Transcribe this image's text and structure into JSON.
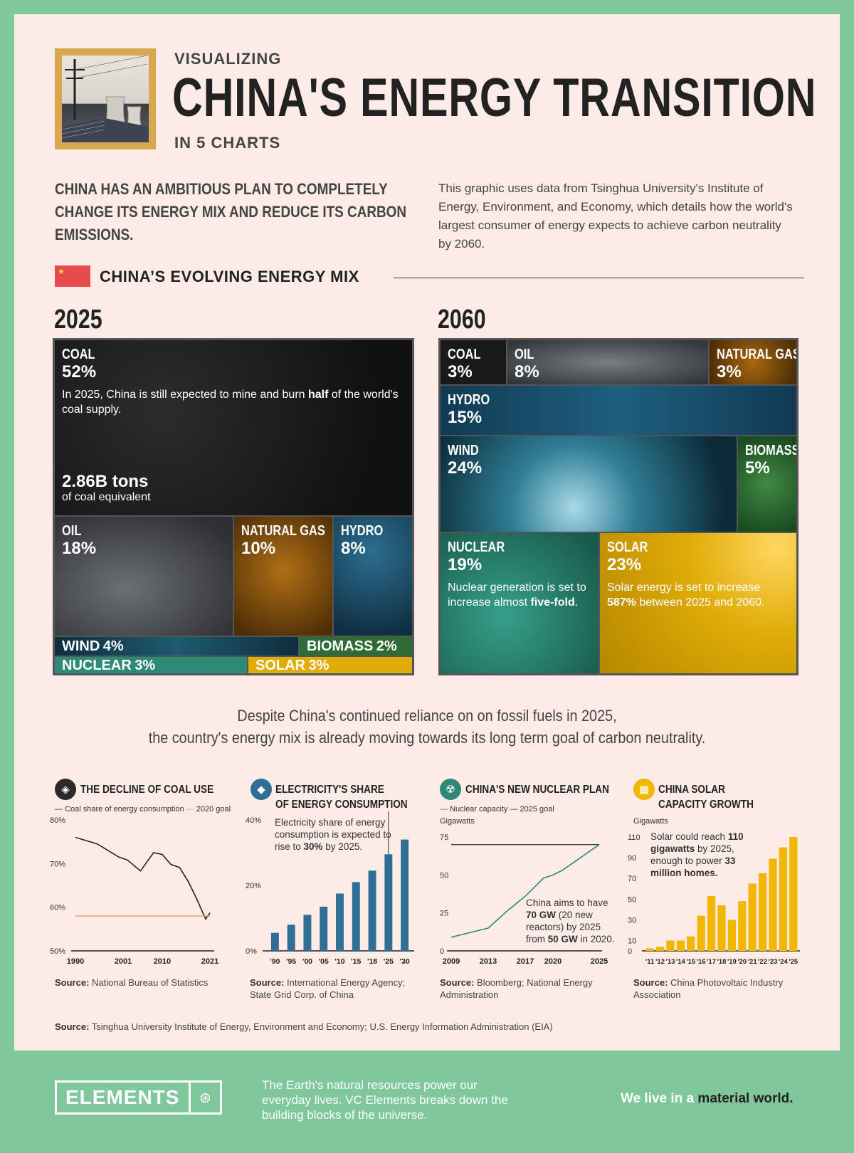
{
  "header": {
    "kicker": "VISUALIZING",
    "title": "CHINA'S ENERGY TRANSITION",
    "subkicker": "IN 5 CHARTS"
  },
  "intro": {
    "left": "CHINA HAS AN AMBITIOUS PLAN TO COMPLETELY CHANGE ITS ENERGY MIX AND REDUCE ITS CARBON EMISSIONS.",
    "right": "This graphic uses data from Tsinghua University's Institute of Energy, Environment, and Economy, which details how the world's largest consumer of energy expects to achieve carbon neutrality by 2060."
  },
  "mix": {
    "heading": "CHINA’S EVOLVING ENERGY MIX",
    "year_a": "2025",
    "year_b": "2060",
    "coal_desc_a": "In 2025, China is still expected to mine and burn ",
    "coal_desc_b": "half",
    "coal_desc_c": " of the world's coal supply.",
    "coal_stat": "2.86B tons",
    "coal_stat_sub": "of coal equivalent",
    "nuclear_desc_a": "Nuclear generation is set to increase almost ",
    "nuclear_desc_b": "five-fold",
    "solar_desc_a": "Solar energy is set to increase ",
    "solar_desc_b": "587%",
    "solar_desc_c": " between 2025 and 2060."
  },
  "mid_text": {
    "line1": "Despite China's continued reliance on on fossil fuels in 2025,",
    "line2": "the country's energy mix is already moving towards its long term goal of carbon neutrality."
  },
  "chart_data": [
    {
      "type": "table",
      "title": "2025",
      "series": [
        {
          "name": "COAL",
          "value": 52,
          "label": "52%"
        },
        {
          "name": "OIL",
          "value": 18,
          "label": "18%"
        },
        {
          "name": "NATURAL GAS",
          "value": 10,
          "label": "10%"
        },
        {
          "name": "HYDRO",
          "value": 8,
          "label": "8%"
        },
        {
          "name": "WIND",
          "value": 4,
          "label": "4%"
        },
        {
          "name": "BIOMASS",
          "value": 2,
          "label": "2%"
        },
        {
          "name": "NUCLEAR",
          "value": 3,
          "label": "3%"
        },
        {
          "name": "SOLAR",
          "value": 3,
          "label": "3%"
        }
      ]
    },
    {
      "type": "table",
      "title": "2060",
      "series": [
        {
          "name": "COAL",
          "value": 3,
          "label": "3%"
        },
        {
          "name": "OIL",
          "value": 8,
          "label": "8%"
        },
        {
          "name": "NATURAL GAS",
          "value": 3,
          "label": "3%"
        },
        {
          "name": "HYDRO",
          "value": 15,
          "label": "15%"
        },
        {
          "name": "WIND",
          "value": 24,
          "label": "24%"
        },
        {
          "name": "BIOMASS",
          "value": 5,
          "label": "5%"
        },
        {
          "name": "NUCLEAR",
          "value": 19,
          "label": "19%"
        },
        {
          "name": "SOLAR",
          "value": 23,
          "label": "23%"
        }
      ]
    },
    {
      "type": "line",
      "title": "THE DECLINE OF COAL USE",
      "legend": [
        "Coal share of energy consumption",
        "2020 goal"
      ],
      "x": [
        1990,
        1995,
        2000,
        2002,
        2005,
        2008,
        2010,
        2012,
        2014,
        2016,
        2018,
        2020,
        2021
      ],
      "series": [
        {
          "name": "Coal share of energy consumption",
          "values": [
            76,
            74.5,
            71.5,
            70.8,
            68.3,
            72.5,
            72.1,
            69.8,
            69.1,
            65.9,
            61.8,
            57.3,
            58.7
          ]
        },
        {
          "name": "2020 goal",
          "values": [
            58,
            58,
            58,
            58,
            58,
            58,
            58,
            58,
            58,
            58,
            58,
            58,
            58
          ]
        }
      ],
      "ylim": [
        50,
        80
      ],
      "yticks": [
        "80%",
        "70%",
        "60%",
        "50%"
      ],
      "xticks": [
        "1990",
        "2001",
        "2010",
        "2021"
      ],
      "source_label": "Source:",
      "source": "National Bureau of Statistics"
    },
    {
      "type": "bar",
      "title": "ELECTRICITY'S SHARE OF ENERGY CONSUMPTION",
      "title_l1": "ELECTRICITY'S SHARE",
      "title_l2": "OF ENERGY CONSUMPTION",
      "categories": [
        "'90",
        "'95",
        "'00",
        "'05",
        "'10",
        "'15",
        "'18",
        "'25",
        "'30"
      ],
      "values": [
        5.5,
        8,
        11,
        13.5,
        17.5,
        21,
        24.5,
        29.5,
        34
      ],
      "ylim": [
        0,
        40
      ],
      "yticks": [
        "40%",
        "20%",
        "0%"
      ],
      "annotation_a": "Electricity share of energy consumption is expected to rise to ",
      "annotation_b": "30%",
      "annotation_c": " by 2025.",
      "source_label": "Source:",
      "source": "International Energy Agency; State Grid Corp. of China"
    },
    {
      "type": "line",
      "title": "CHINA'S NEW NUCLEAR PLAN",
      "legend": [
        "Nuclear capacity",
        "2025 goal"
      ],
      "ylabel": "Gigawatts",
      "x": [
        2009,
        2013,
        2015,
        2017,
        2019,
        2020,
        2021,
        2025
      ],
      "series": [
        {
          "name": "Nuclear capacity",
          "values": [
            9,
            15,
            26,
            36,
            48,
            50,
            53,
            70
          ]
        },
        {
          "name": "2025 goal",
          "values": [
            70,
            70,
            70,
            70,
            70,
            70,
            70,
            70
          ]
        }
      ],
      "ylim": [
        0,
        75
      ],
      "yticks": [
        "75",
        "50",
        "25",
        "0"
      ],
      "xticks": [
        "2009",
        "2013",
        "2017",
        "2020",
        "2025"
      ],
      "annotation_a": "China aims to have ",
      "annotation_b": "70 GW",
      "annotation_c": " (20 new reactors) by 2025 from ",
      "annotation_d": "50 GW",
      "annotation_e": " in 2020.",
      "source_label": "Source:",
      "source": "Bloomberg; National Energy Administration"
    },
    {
      "type": "bar",
      "title": "CHINA SOLAR CAPACITY GROWTH",
      "title_l1": "CHINA SOLAR",
      "title_l2": "CAPACITY GROWTH",
      "ylabel": "Gigawatts",
      "categories": [
        "'11",
        "'12",
        "'13",
        "'14",
        "'15",
        "'16",
        "'17",
        "'18",
        "'19",
        "'20",
        "'21",
        "'22",
        "'23",
        "'24",
        "'25"
      ],
      "values": [
        2.5,
        4,
        10,
        10,
        14,
        34,
        53,
        44,
        30,
        48,
        65,
        75,
        89,
        100,
        110
      ],
      "ylim": [
        0,
        110
      ],
      "yticks": [
        "110",
        "90",
        "70",
        "50",
        "30",
        "10",
        "0"
      ],
      "annotation_a": "Solar could reach ",
      "annotation_b": "110 gigawatts",
      "annotation_c": " by 2025, enough to power ",
      "annotation_d": "33 million homes.",
      "source_label": "Source:",
      "source": "China Photovoltaic Industry Association"
    }
  ],
  "main_source": {
    "label": "Source:",
    "text": "Tsinghua University Institute of Energy, Environment and Economy; U.S. Energy Information Administration (EIA)"
  },
  "footer": {
    "brand": "ELEMENTS",
    "text": "The Earth's natural resources power our everyday lives. VC Elements breaks down the building blocks of the universe.",
    "tag_a": "We live in a ",
    "tag_b": "material world."
  },
  "colors": {
    "coal": "#1e1e1e",
    "oil": "#4a4d52",
    "gas": "#8a5510",
    "hydro": "#1e4f6a",
    "wind": "#1c5a6e",
    "biomass": "#2f6b34",
    "nuclear": "#2e8a76",
    "solar": "#e0ac08",
    "bar_blue": "#2f6f94",
    "solar_bar": "#f2b705",
    "accent": "#80c79c"
  }
}
